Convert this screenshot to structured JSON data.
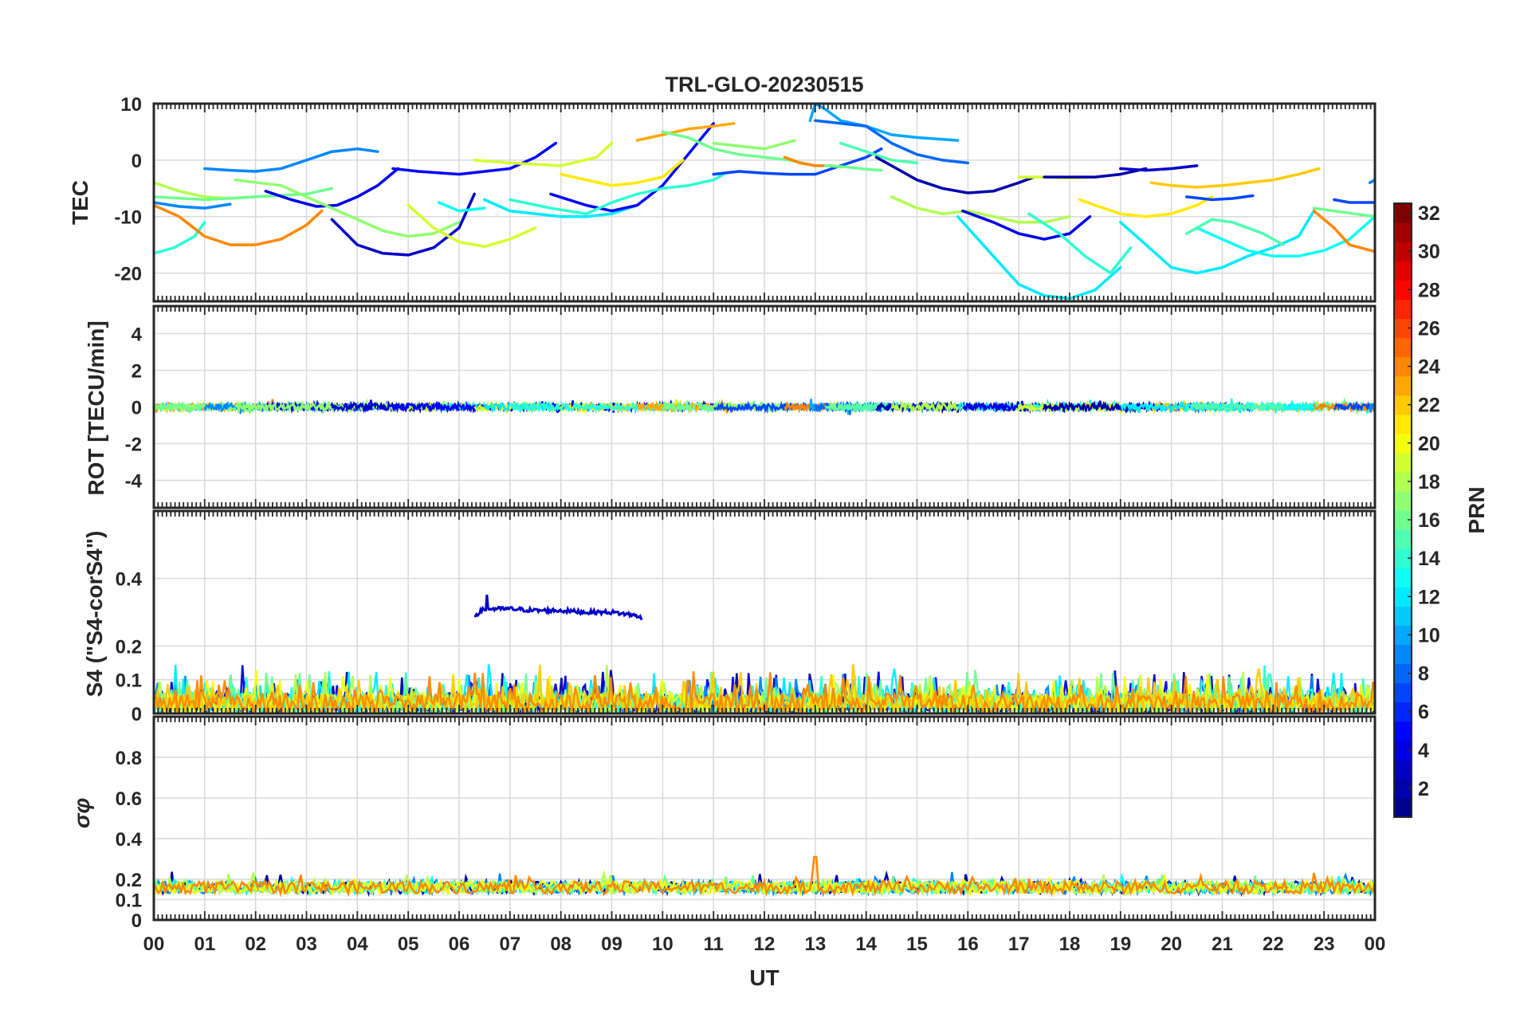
{
  "chart_data": {
    "type": "line",
    "title": "TRL-GLO-20230515",
    "xlabel": "UT",
    "x_range_hours": [
      0,
      24
    ],
    "x_tick_labels": [
      "00",
      "01",
      "02",
      "03",
      "04",
      "05",
      "06",
      "07",
      "08",
      "09",
      "10",
      "11",
      "12",
      "13",
      "14",
      "15",
      "16",
      "17",
      "18",
      "19",
      "20",
      "21",
      "22",
      "23",
      "00"
    ],
    "grid": true,
    "colorbar": {
      "label": "PRN",
      "range": [
        1,
        32
      ],
      "tick_labels": [
        "2",
        "4",
        "6",
        "8",
        "10",
        "12",
        "14",
        "16",
        "18",
        "20",
        "22",
        "24",
        "26",
        "28",
        "30",
        "32"
      ],
      "colormap": "jet",
      "stops": [
        "#00008f",
        "#0000ff",
        "#007fff",
        "#00ffff",
        "#7fff7f",
        "#ffff00",
        "#ff7f00",
        "#ff0000",
        "#7f0000"
      ]
    },
    "panels": [
      {
        "id": "tec",
        "ylabel": "TEC",
        "ylim": [
          -25,
          10
        ],
        "y_tick_labels": [
          "10",
          "0",
          "-10",
          "-20"
        ],
        "series": [
          {
            "prn": 9,
            "x": [
              0.0,
              0.5,
              1.0,
              1.5
            ],
            "y": [
              -7.5,
              -8.2,
              -8.5,
              -7.8
            ]
          },
          {
            "prn": 14,
            "x": [
              0.0,
              0.4,
              0.8,
              1.0
            ],
            "y": [
              -16.5,
              -15.5,
              -13.5,
              -11.0
            ]
          },
          {
            "prn": 24,
            "x": [
              0.0,
              0.5,
              1.0,
              1.5,
              2.0,
              2.5,
              3.0,
              3.3
            ],
            "y": [
              -8.0,
              -10.0,
              -13.5,
              -15.0,
              -15.0,
              -14.0,
              -11.5,
              -9.0
            ]
          },
          {
            "prn": 18,
            "x": [
              0.0,
              0.5,
              1.0,
              1.5,
              2.0
            ],
            "y": [
              -4.0,
              -5.5,
              -6.5,
              -6.8,
              -6.5
            ]
          },
          {
            "prn": 16,
            "x": [
              0.0,
              1.0,
              2.0,
              3.0,
              3.5
            ],
            "y": [
              -6.5,
              -7.0,
              -6.5,
              -6.0,
              -5.0
            ]
          },
          {
            "prn": 9,
            "x": [
              1.0,
              1.5,
              2.0,
              2.5,
              3.0,
              3.5,
              4.0,
              4.4
            ],
            "y": [
              -1.5,
              -1.8,
              -2.0,
              -1.5,
              0.0,
              1.5,
              2.0,
              1.5
            ]
          },
          {
            "prn": 4,
            "x": [
              2.2,
              2.7,
              3.2,
              3.6,
              4.0,
              4.4,
              4.8
            ],
            "y": [
              -5.5,
              -7.0,
              -8.2,
              -8.0,
              -6.5,
              -4.5,
              -1.5
            ]
          },
          {
            "prn": 17,
            "x": [
              1.6,
              2.5,
              3.5,
              4.5,
              5.0,
              5.5,
              6.0
            ],
            "y": [
              -3.5,
              -4.5,
              -8.5,
              -12.5,
              -13.5,
              -13.0,
              -11.0
            ]
          },
          {
            "prn": 3,
            "x": [
              3.5,
              4.0,
              4.5,
              5.0,
              5.5,
              6.0,
              6.3
            ],
            "y": [
              -10.5,
              -15.0,
              -16.5,
              -16.8,
              -15.5,
              -12.0,
              -6.0
            ]
          },
          {
            "prn": 19,
            "x": [
              5.0,
              5.5,
              6.0,
              6.5,
              7.0,
              7.5
            ],
            "y": [
              -8.0,
              -12.0,
              -14.5,
              -15.3,
              -14.0,
              -12.0
            ]
          },
          {
            "prn": 13,
            "x": [
              5.6,
              6.0,
              6.5
            ],
            "y": [
              -7.5,
              -9.0,
              -8.5
            ]
          },
          {
            "prn": 5,
            "x": [
              4.7,
              5.2,
              6.0,
              7.0,
              7.5,
              7.9
            ],
            "y": [
              -1.5,
              -2.0,
              -2.5,
              -1.5,
              0.5,
              3.0
            ]
          },
          {
            "prn": 19,
            "x": [
              6.3,
              7.0,
              8.0,
              8.7,
              9.0
            ],
            "y": [
              0.0,
              -0.5,
              -1.0,
              0.5,
              3.0
            ]
          },
          {
            "prn": 12,
            "x": [
              6.5,
              7.0,
              8.0,
              8.5,
              9.0,
              9.5
            ],
            "y": [
              -7.0,
              -9.0,
              -10.0,
              -10.0,
              -9.5,
              -8.0
            ]
          },
          {
            "prn": 5,
            "x": [
              7.8,
              8.5,
              9.0,
              9.5,
              10.0,
              10.5,
              11.0
            ],
            "y": [
              -6.0,
              -8.0,
              -9.0,
              -8.0,
              -4.5,
              1.0,
              6.5
            ]
          },
          {
            "prn": 21,
            "x": [
              8.0,
              8.5,
              9.0,
              9.5,
              10.0,
              10.4
            ],
            "y": [
              -2.5,
              -3.5,
              -4.5,
              -4.0,
              -3.0,
              0.0
            ]
          },
          {
            "prn": 14,
            "x": [
              7.0,
              7.8,
              8.5,
              9.0,
              9.5,
              10.0,
              10.5,
              11.0,
              11.2
            ],
            "y": [
              -7.0,
              -8.5,
              -9.5,
              -7.5,
              -6.0,
              -5.0,
              -4.5,
              -3.5,
              -2.5
            ]
          },
          {
            "prn": 23,
            "x": [
              9.5,
              10.0,
              10.5,
              11.0,
              11.4
            ],
            "y": [
              3.5,
              4.5,
              5.5,
              6.0,
              6.5
            ]
          },
          {
            "prn": 16,
            "x": [
              10.0,
              10.5,
              11.0,
              11.5,
              12.0,
              12.5,
              13.0
            ],
            "y": [
              5.0,
              4.0,
              2.0,
              1.0,
              0.5,
              0.0,
              -1.0
            ]
          },
          {
            "prn": 17,
            "x": [
              11.0,
              11.5,
              12.0,
              12.6
            ],
            "y": [
              3.0,
              2.5,
              2.0,
              3.5
            ]
          },
          {
            "prn": 7,
            "x": [
              11.0,
              11.5,
              12.0,
              12.5,
              13.0,
              13.5,
              14.0,
              14.3
            ],
            "y": [
              -2.5,
              -2.0,
              -2.3,
              -2.5,
              -2.5,
              -1.0,
              0.5,
              2.0
            ]
          },
          {
            "prn": 24,
            "x": [
              12.4,
              12.7,
              13.0,
              13.3,
              13.5
            ],
            "y": [
              0.5,
              -0.5,
              -1.0,
              -1.0,
              -1.2
            ]
          },
          {
            "prn": 10,
            "x": [
              12.9,
              13.0,
              13.2,
              13.5,
              14.0,
              14.5,
              15.0,
              15.8
            ],
            "y": [
              7.0,
              10.0,
              9.0,
              7.0,
              6.0,
              4.5,
              4.0,
              3.5
            ]
          },
          {
            "prn": 8,
            "x": [
              13.0,
              13.5,
              14.0,
              14.5,
              15.0,
              15.5,
              16.0
            ],
            "y": [
              7.0,
              6.5,
              6.0,
              3.0,
              1.0,
              0.0,
              -0.5
            ]
          },
          {
            "prn": 16,
            "x": [
              13.2,
              13.6,
              14.0,
              14.3
            ],
            "y": [
              -1.0,
              -1.2,
              -1.6,
              -1.8
            ]
          },
          {
            "prn": 15,
            "x": [
              13.5,
              14.0,
              14.5,
              15.0
            ],
            "y": [
              3.0,
              1.5,
              0.0,
              -0.5
            ]
          },
          {
            "prn": 2,
            "x": [
              14.2,
              14.5,
              15.0,
              15.5,
              16.0,
              16.5,
              17.0,
              17.3
            ],
            "y": [
              0.5,
              -1.0,
              -3.5,
              -5.0,
              -5.8,
              -5.5,
              -4.0,
              -3.0
            ]
          },
          {
            "prn": 18,
            "x": [
              14.5,
              15.0,
              15.5,
              16.0,
              16.5,
              17.0,
              17.5,
              18.0
            ],
            "y": [
              -6.5,
              -8.5,
              -9.5,
              -9.0,
              -10.0,
              -11.0,
              -11.0,
              -10.0
            ]
          },
          {
            "prn": 12,
            "x": [
              15.8,
              16.5,
              17.0,
              17.5,
              18.0,
              18.5,
              19.0
            ],
            "y": [
              -10.0,
              -17.0,
              -22.0,
              -24.0,
              -24.5,
              -23.0,
              -19.0
            ]
          },
          {
            "prn": 4,
            "x": [
              15.9,
              16.5,
              17.0,
              17.5,
              18.0,
              18.4
            ],
            "y": [
              -9.0,
              -11.0,
              -13.0,
              -14.0,
              -13.0,
              -10.0
            ]
          },
          {
            "prn": 14,
            "x": [
              17.2,
              17.8,
              18.3,
              18.8,
              19.2
            ],
            "y": [
              -9.5,
              -13.0,
              -17.0,
              -20.0,
              -15.5
            ]
          },
          {
            "prn": 19,
            "x": [
              17.0,
              17.5,
              18.0,
              18.5,
              19.0
            ],
            "y": [
              -3.0,
              -3.0,
              -3.2,
              -3.0,
              -2.5
            ]
          },
          {
            "prn": 21,
            "x": [
              18.2,
              18.5,
              19.0,
              19.5,
              20.0,
              20.5,
              20.8
            ],
            "y": [
              -7.0,
              -8.0,
              -9.5,
              -10.0,
              -9.5,
              -8.0,
              -6.5
            ]
          },
          {
            "prn": 2,
            "x": [
              17.5,
              18.5,
              19.0,
              19.5
            ],
            "y": [
              -3.0,
              -3.0,
              -2.5,
              -1.5
            ]
          },
          {
            "prn": 3,
            "x": [
              19.0,
              19.5,
              20.0,
              20.5
            ],
            "y": [
              -1.5,
              -1.8,
              -1.5,
              -1.0
            ]
          },
          {
            "prn": 22,
            "x": [
              19.6,
              20.0,
              20.5,
              21.0,
              21.5,
              22.0,
              22.5,
              22.9
            ],
            "y": [
              -4.0,
              -4.5,
              -4.8,
              -4.5,
              -4.0,
              -3.5,
              -2.5,
              -1.5
            ]
          },
          {
            "prn": 7,
            "x": [
              20.3,
              20.8,
              21.2,
              21.6
            ],
            "y": [
              -6.5,
              -7.0,
              -6.8,
              -6.3
            ]
          },
          {
            "prn": 12,
            "x": [
              19.0,
              19.5,
              20.0,
              20.5,
              21.0,
              21.5,
              22.0,
              22.5,
              22.8
            ],
            "y": [
              -11.0,
              -15.0,
              -19.0,
              -20.0,
              -19.0,
              -17.0,
              -15.5,
              -13.5,
              -9.0
            ]
          },
          {
            "prn": 13,
            "x": [
              20.5,
              21.0,
              21.5,
              22.0,
              22.5,
              23.0,
              23.5,
              24.0
            ],
            "y": [
              -12.0,
              -14.0,
              -16.0,
              -17.0,
              -17.0,
              -16.0,
              -14.0,
              -10.0
            ]
          },
          {
            "prn": 15,
            "x": [
              20.3,
              20.8,
              21.2,
              21.8,
              22.2
            ],
            "y": [
              -13.0,
              -10.5,
              -11.0,
              -13.0,
              -15.0
            ]
          },
          {
            "prn": 16,
            "x": [
              22.8,
              23.2,
              23.6,
              24.0
            ],
            "y": [
              -8.5,
              -9.0,
              -9.5,
              -10.0
            ]
          },
          {
            "prn": 24,
            "x": [
              22.8,
              23.2,
              23.5,
              24.0
            ],
            "y": [
              -9.0,
              -12.0,
              -15.0,
              -16.2
            ]
          },
          {
            "prn": 7,
            "x": [
              23.2,
              23.5,
              24.0
            ],
            "y": [
              -7.0,
              -7.5,
              -7.5
            ]
          },
          {
            "prn": 9,
            "x": [
              23.9,
              24.0
            ],
            "y": [
              -4.0,
              -3.5
            ]
          }
        ]
      },
      {
        "id": "rot",
        "ylabel": "ROT [TECU/min]",
        "ylim": [
          -5.5,
          5.5
        ],
        "y_tick_labels": [
          "4",
          "2",
          "0",
          "-2",
          "-4"
        ],
        "note": "All PRN traces stay within roughly ±0.3 TECU/min of zero across the day."
      },
      {
        "id": "s4",
        "ylabel": "S4 (\"S4-corS4\")",
        "ylim": [
          0,
          0.6
        ],
        "y_tick_labels": [
          "0.4",
          "0.2",
          "0.1",
          "0"
        ],
        "highlight_series": {
          "prn": 3,
          "x": [
            6.3,
            6.5,
            7.0,
            7.5,
            8.0,
            8.5,
            9.0,
            9.5,
            9.6
          ],
          "y": [
            0.29,
            0.31,
            0.31,
            0.305,
            0.305,
            0.3,
            0.3,
            0.29,
            0.28
          ]
        },
        "note": "Background S4 values mostly between 0.0 and 0.1 for all PRNs, with spikes up to ~0.18."
      },
      {
        "id": "sigma_phi",
        "ylabel": "σφ",
        "ylim": [
          0,
          1.0
        ],
        "y_tick_labels": [
          "0.8",
          "0.6",
          "0.4",
          "0.2",
          "0.1",
          "0"
        ],
        "note": "Phase scintillation values clustered between ~0.12 and ~0.22 for all PRNs, with a peak near 0.32 around 13 UT."
      }
    ]
  }
}
